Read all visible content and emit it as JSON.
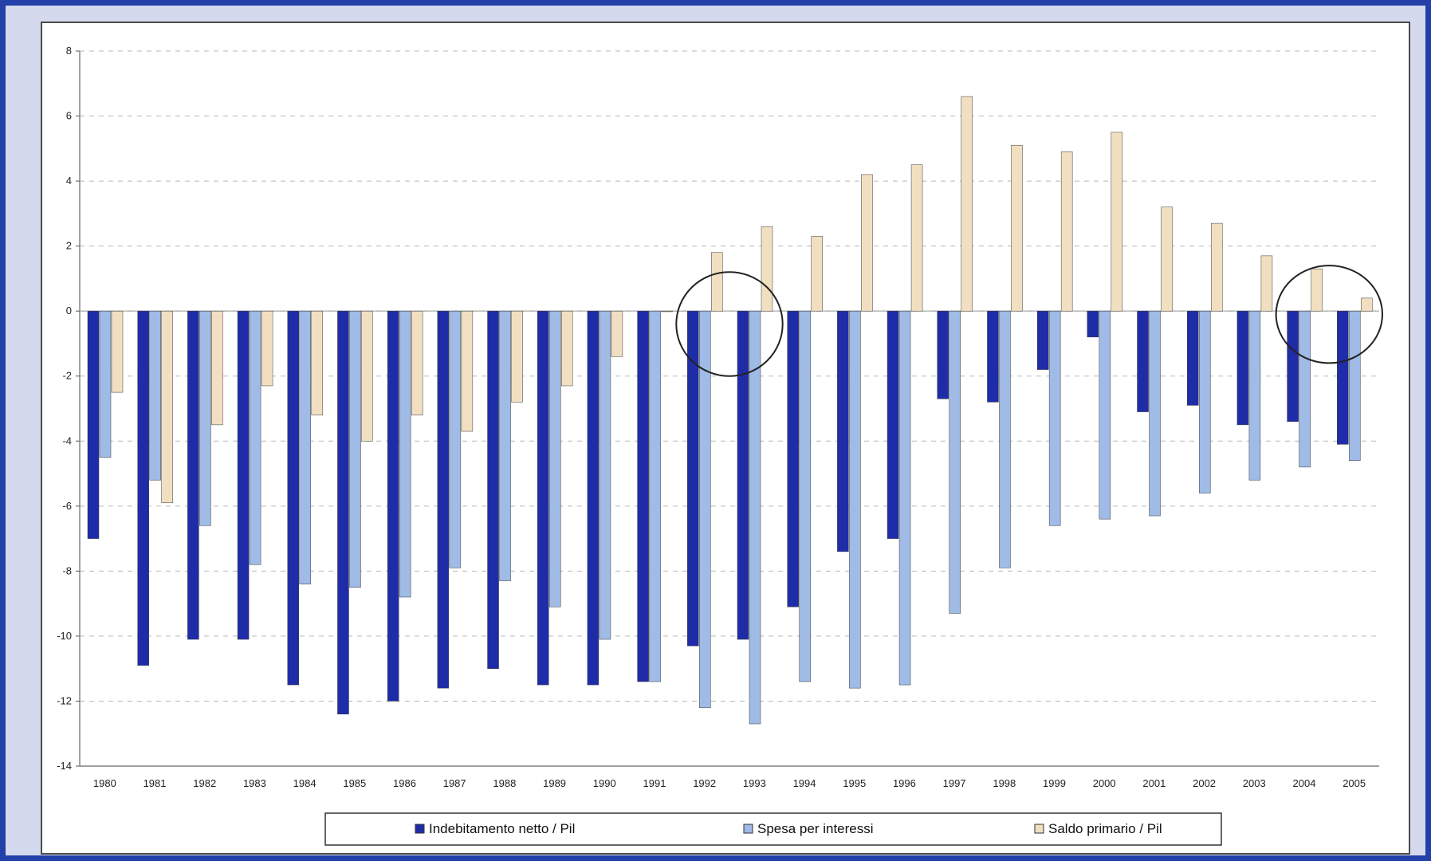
{
  "chart_data": {
    "type": "bar",
    "categories": [
      "1980",
      "1981",
      "1982",
      "1983",
      "1984",
      "1985",
      "1986",
      "1987",
      "1988",
      "1989",
      "1990",
      "1991",
      "1992",
      "1993",
      "1994",
      "1995",
      "1996",
      "1997",
      "1998",
      "1999",
      "2000",
      "2001",
      "2002",
      "2003",
      "2004",
      "2005"
    ],
    "series": [
      {
        "name": "Indebitamento netto / Pil",
        "color": "#1f2ca8",
        "values": [
          -7.0,
          -10.9,
          -10.1,
          -10.1,
          -11.5,
          -12.4,
          -12.0,
          -11.6,
          -11.0,
          -11.5,
          -11.5,
          -11.4,
          -10.3,
          -10.1,
          -9.1,
          -7.4,
          -7.0,
          -2.7,
          -2.8,
          -1.8,
          -0.8,
          -3.1,
          -2.9,
          -3.5,
          -3.4,
          -4.1
        ]
      },
      {
        "name": "Spesa per interessi",
        "color": "#9fbbe6",
        "values": [
          -4.5,
          -5.2,
          -6.6,
          -7.8,
          -8.4,
          -8.5,
          -8.8,
          -7.9,
          -8.3,
          -9.1,
          -10.1,
          -11.4,
          -12.2,
          -12.7,
          -11.4,
          -11.6,
          -11.5,
          -9.3,
          -7.9,
          -6.6,
          -6.4,
          -6.3,
          -5.6,
          -5.2,
          -4.8,
          -4.6
        ]
      },
      {
        "name": "Saldo primario / Pil",
        "color": "#f2dfc2",
        "values": [
          -2.5,
          -5.9,
          -3.5,
          -2.3,
          -3.2,
          -4.0,
          -3.2,
          -3.7,
          -2.8,
          -2.3,
          -1.4,
          0.0,
          1.8,
          2.6,
          2.3,
          4.2,
          4.5,
          6.6,
          5.1,
          4.9,
          5.5,
          3.2,
          2.7,
          1.7,
          1.3,
          0.4
        ]
      }
    ],
    "yticks": [
      "8",
      "6",
      "4",
      "2",
      "0",
      "-2",
      "-4",
      "-6",
      "-8",
      "-10",
      "-12",
      "-14"
    ],
    "ylim": [
      -14,
      8
    ],
    "grid": "horizontal dashed",
    "legend_position": "bottom",
    "annotations": [
      "circle around 1992-1993",
      "circle around 2004-2005"
    ]
  }
}
